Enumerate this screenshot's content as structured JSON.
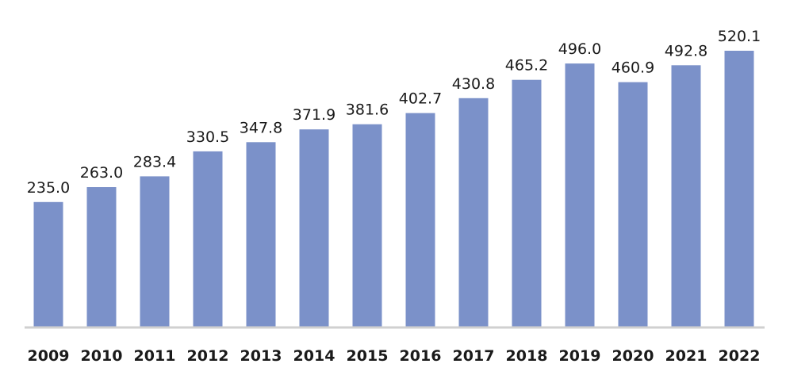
{
  "chart_data": {
    "type": "bar",
    "title": "",
    "xlabel": "",
    "ylabel": "",
    "categories": [
      "2009",
      "2010",
      "2011",
      "2012",
      "2013",
      "2014",
      "2015",
      "2016",
      "2017",
      "2018",
      "2019",
      "2020",
      "2021",
      "2022"
    ],
    "values": [
      235.0,
      263.0,
      283.4,
      330.5,
      347.8,
      371.9,
      381.6,
      402.7,
      430.8,
      465.2,
      496.0,
      460.9,
      492.8,
      520.1
    ],
    "value_labels": [
      "235.0",
      "263.0",
      "283.4",
      "330.5",
      "347.8",
      "371.9",
      "381.6",
      "402.7",
      "430.8",
      "465.2",
      "496.0",
      "460.9",
      "492.8",
      "520.1"
    ],
    "ylim": [
      0,
      520.1
    ],
    "grid": false,
    "legend": "none",
    "bar_color": "#7b91c9",
    "axis_color": "#d0d0d0"
  }
}
